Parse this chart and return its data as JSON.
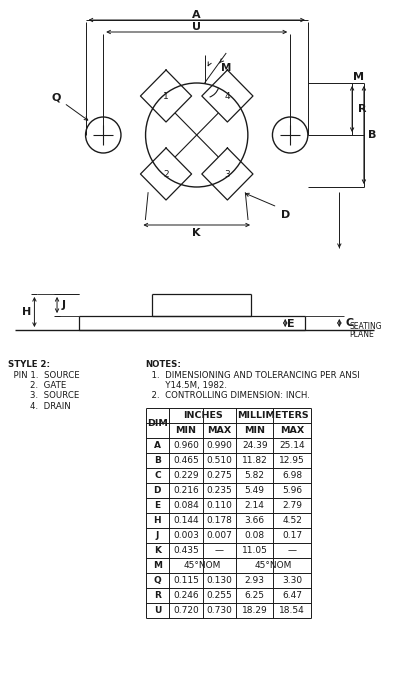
{
  "bg_color": "#ffffff",
  "line_color": "#1a1a1a",
  "table_data": {
    "dims": [
      "A",
      "B",
      "C",
      "D",
      "E",
      "H",
      "J",
      "K",
      "M",
      "Q",
      "R",
      "U"
    ],
    "inch_min": [
      "0.960",
      "0.465",
      "0.229",
      "0.216",
      "0.084",
      "0.144",
      "0.003",
      "0.435",
      "45°NOM",
      "0.115",
      "0.246",
      "0.720"
    ],
    "inch_max": [
      "0.990",
      "0.510",
      "0.275",
      "0.235",
      "0.110",
      "0.178",
      "0.007",
      "—",
      "45°NOM",
      "0.130",
      "0.255",
      "0.730"
    ],
    "mm_min": [
      "24.39",
      "11.82",
      "5.82",
      "5.49",
      "2.14",
      "3.66",
      "0.08",
      "11.05",
      "45°NOM",
      "2.93",
      "6.25",
      "18.29"
    ],
    "mm_max": [
      "25.14",
      "12.95",
      "6.98",
      "5.96",
      "2.79",
      "4.52",
      "0.17",
      "—",
      "45°NOM",
      "3.30",
      "6.47",
      "18.54"
    ]
  },
  "style_lines": [
    "STYLE 2:",
    "  PIN 1.  SOURCE",
    "        2.  GATE",
    "        3.  SOURCE",
    "        4.  DRAIN"
  ],
  "notes_lines": [
    "NOTES:",
    "  1.  DIMENSIONING AND TOLERANCING PER ANSI",
    "       Y14.5M, 1982.",
    "  2.  CONTROLLING DIMENSION: INCH."
  ]
}
